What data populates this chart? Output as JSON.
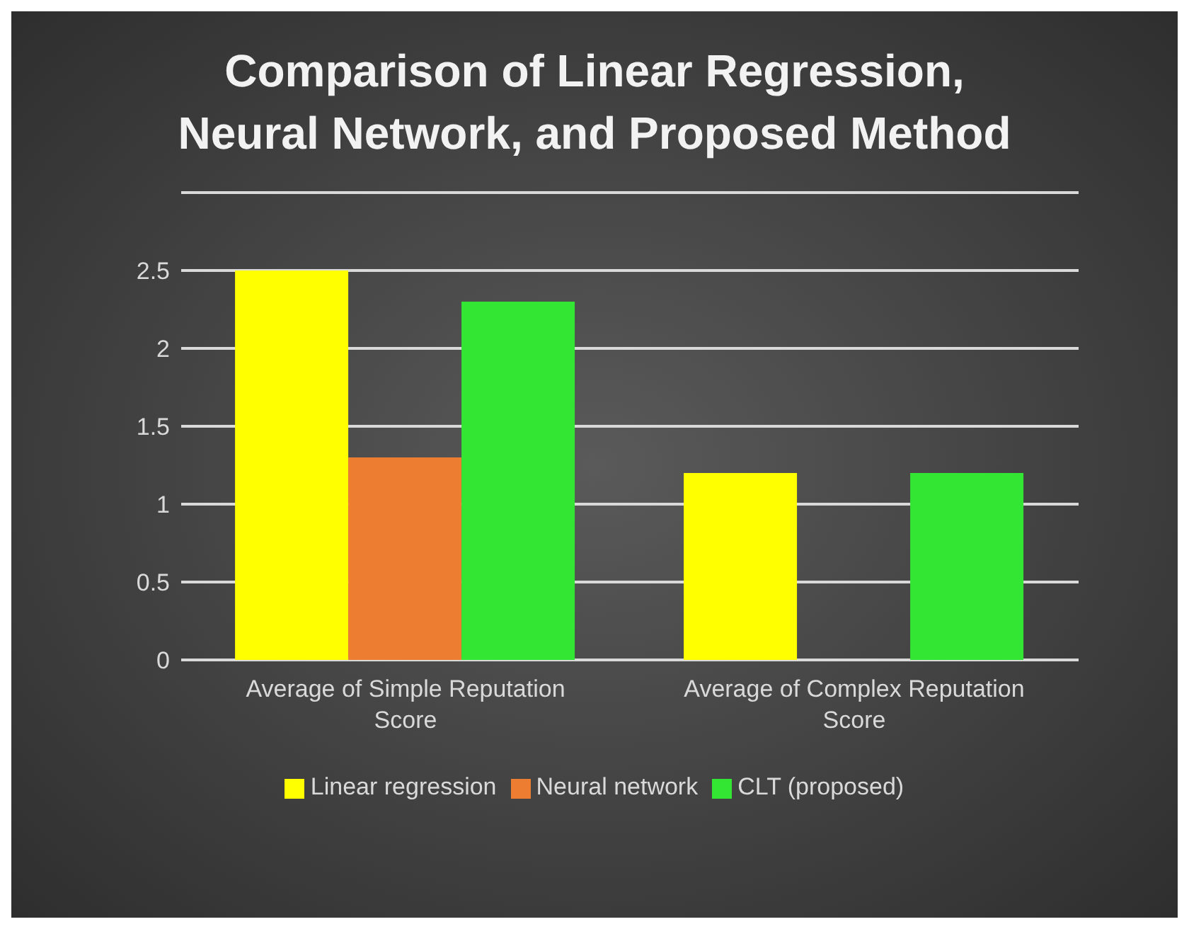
{
  "chart_data": {
    "type": "bar",
    "title": "Comparison of Linear Regression, Neural Network, and Proposed Method",
    "categories": [
      "Average of Simple Reputation Score",
      "Average of Complex Reputation Score"
    ],
    "series": [
      {
        "name": "Linear regression",
        "color": "#ffff00",
        "values": [
          2.5,
          1.2
        ]
      },
      {
        "name": "Neural network",
        "color": "#ed7d31",
        "values": [
          1.3,
          0
        ]
      },
      {
        "name": "CLT (proposed)",
        "color": "#33e633",
        "values": [
          2.3,
          1.2
        ]
      }
    ],
    "ylim": [
      0,
      3
    ],
    "yticks": [
      0,
      0.5,
      1,
      1.5,
      2,
      2.5,
      {
        "value": 3,
        "label": null
      }
    ],
    "grid": "y",
    "legend": "bottom"
  }
}
